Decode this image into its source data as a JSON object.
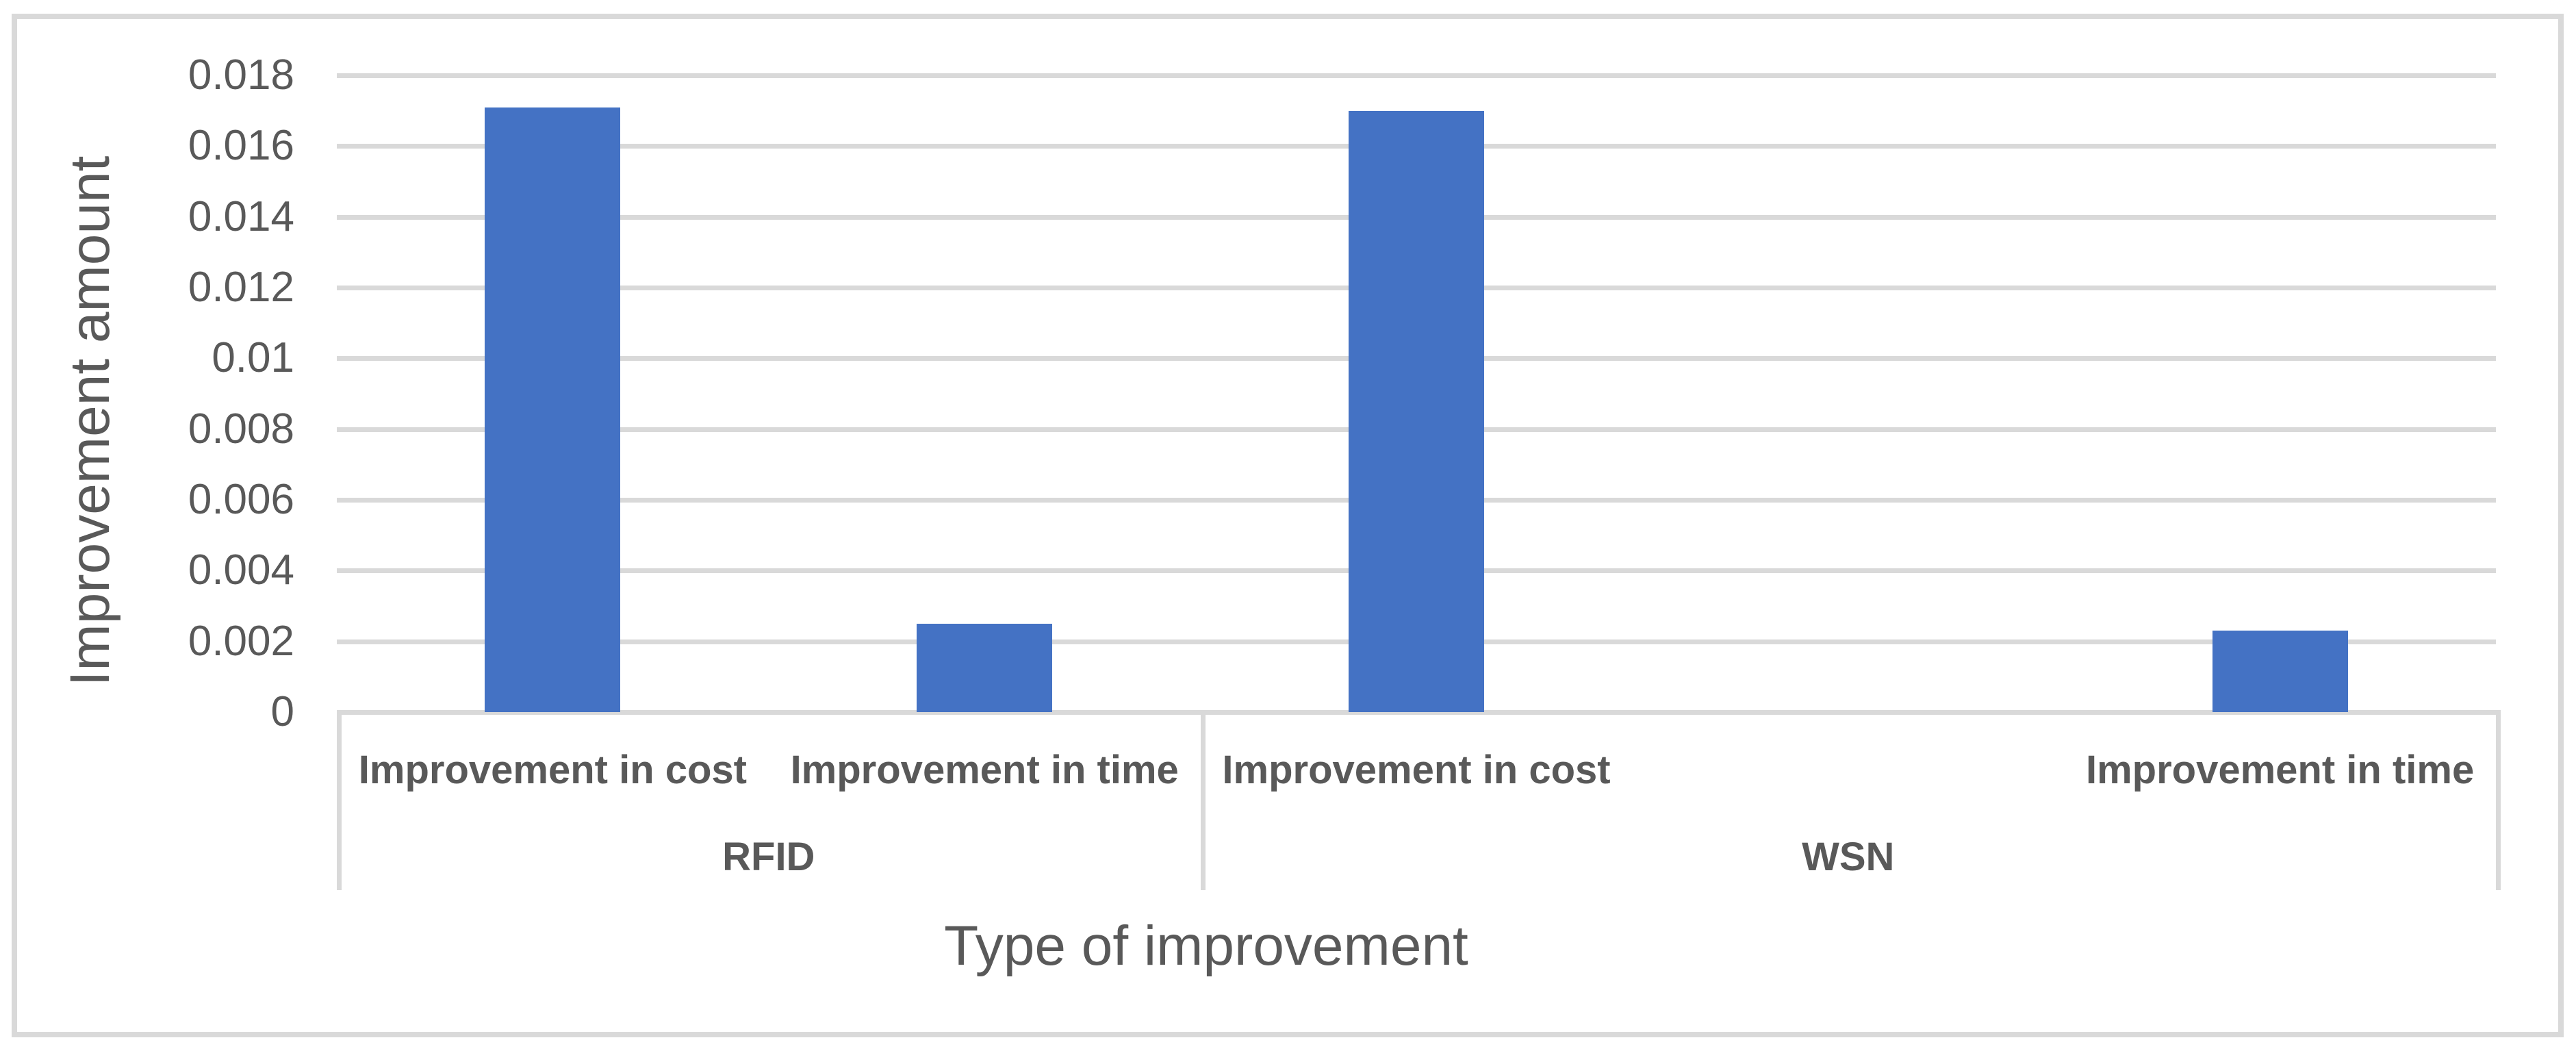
{
  "chart_data": {
    "type": "bar",
    "title": "",
    "xlabel": "Type of improvement",
    "ylabel": "Improvement amount",
    "ylim": [
      0,
      0.018
    ],
    "ytick_labels": [
      "0",
      "0.002",
      "0.004",
      "0.006",
      "0.008",
      "0.01",
      "0.012",
      "0.014",
      "0.016",
      "0.018"
    ],
    "grid": true,
    "legend": false,
    "bar_color": "#4472c4",
    "gridline_color": "#d9d9d9",
    "text_color": "#595959",
    "groups": [
      {
        "label": "RFID",
        "slot_count": 2,
        "categories": [
          {
            "label": "Improvement in cost",
            "value": 0.0171,
            "slot": 0
          },
          {
            "label": "Improvement in time",
            "value": 0.0025,
            "slot": 1
          }
        ]
      },
      {
        "label": "WSN",
        "slot_count": 3,
        "categories": [
          {
            "label": "Improvement in cost",
            "value": 0.017,
            "slot": 0
          },
          {
            "label": "Improvement in time",
            "value": 0.0023,
            "slot": 2
          }
        ]
      }
    ]
  }
}
